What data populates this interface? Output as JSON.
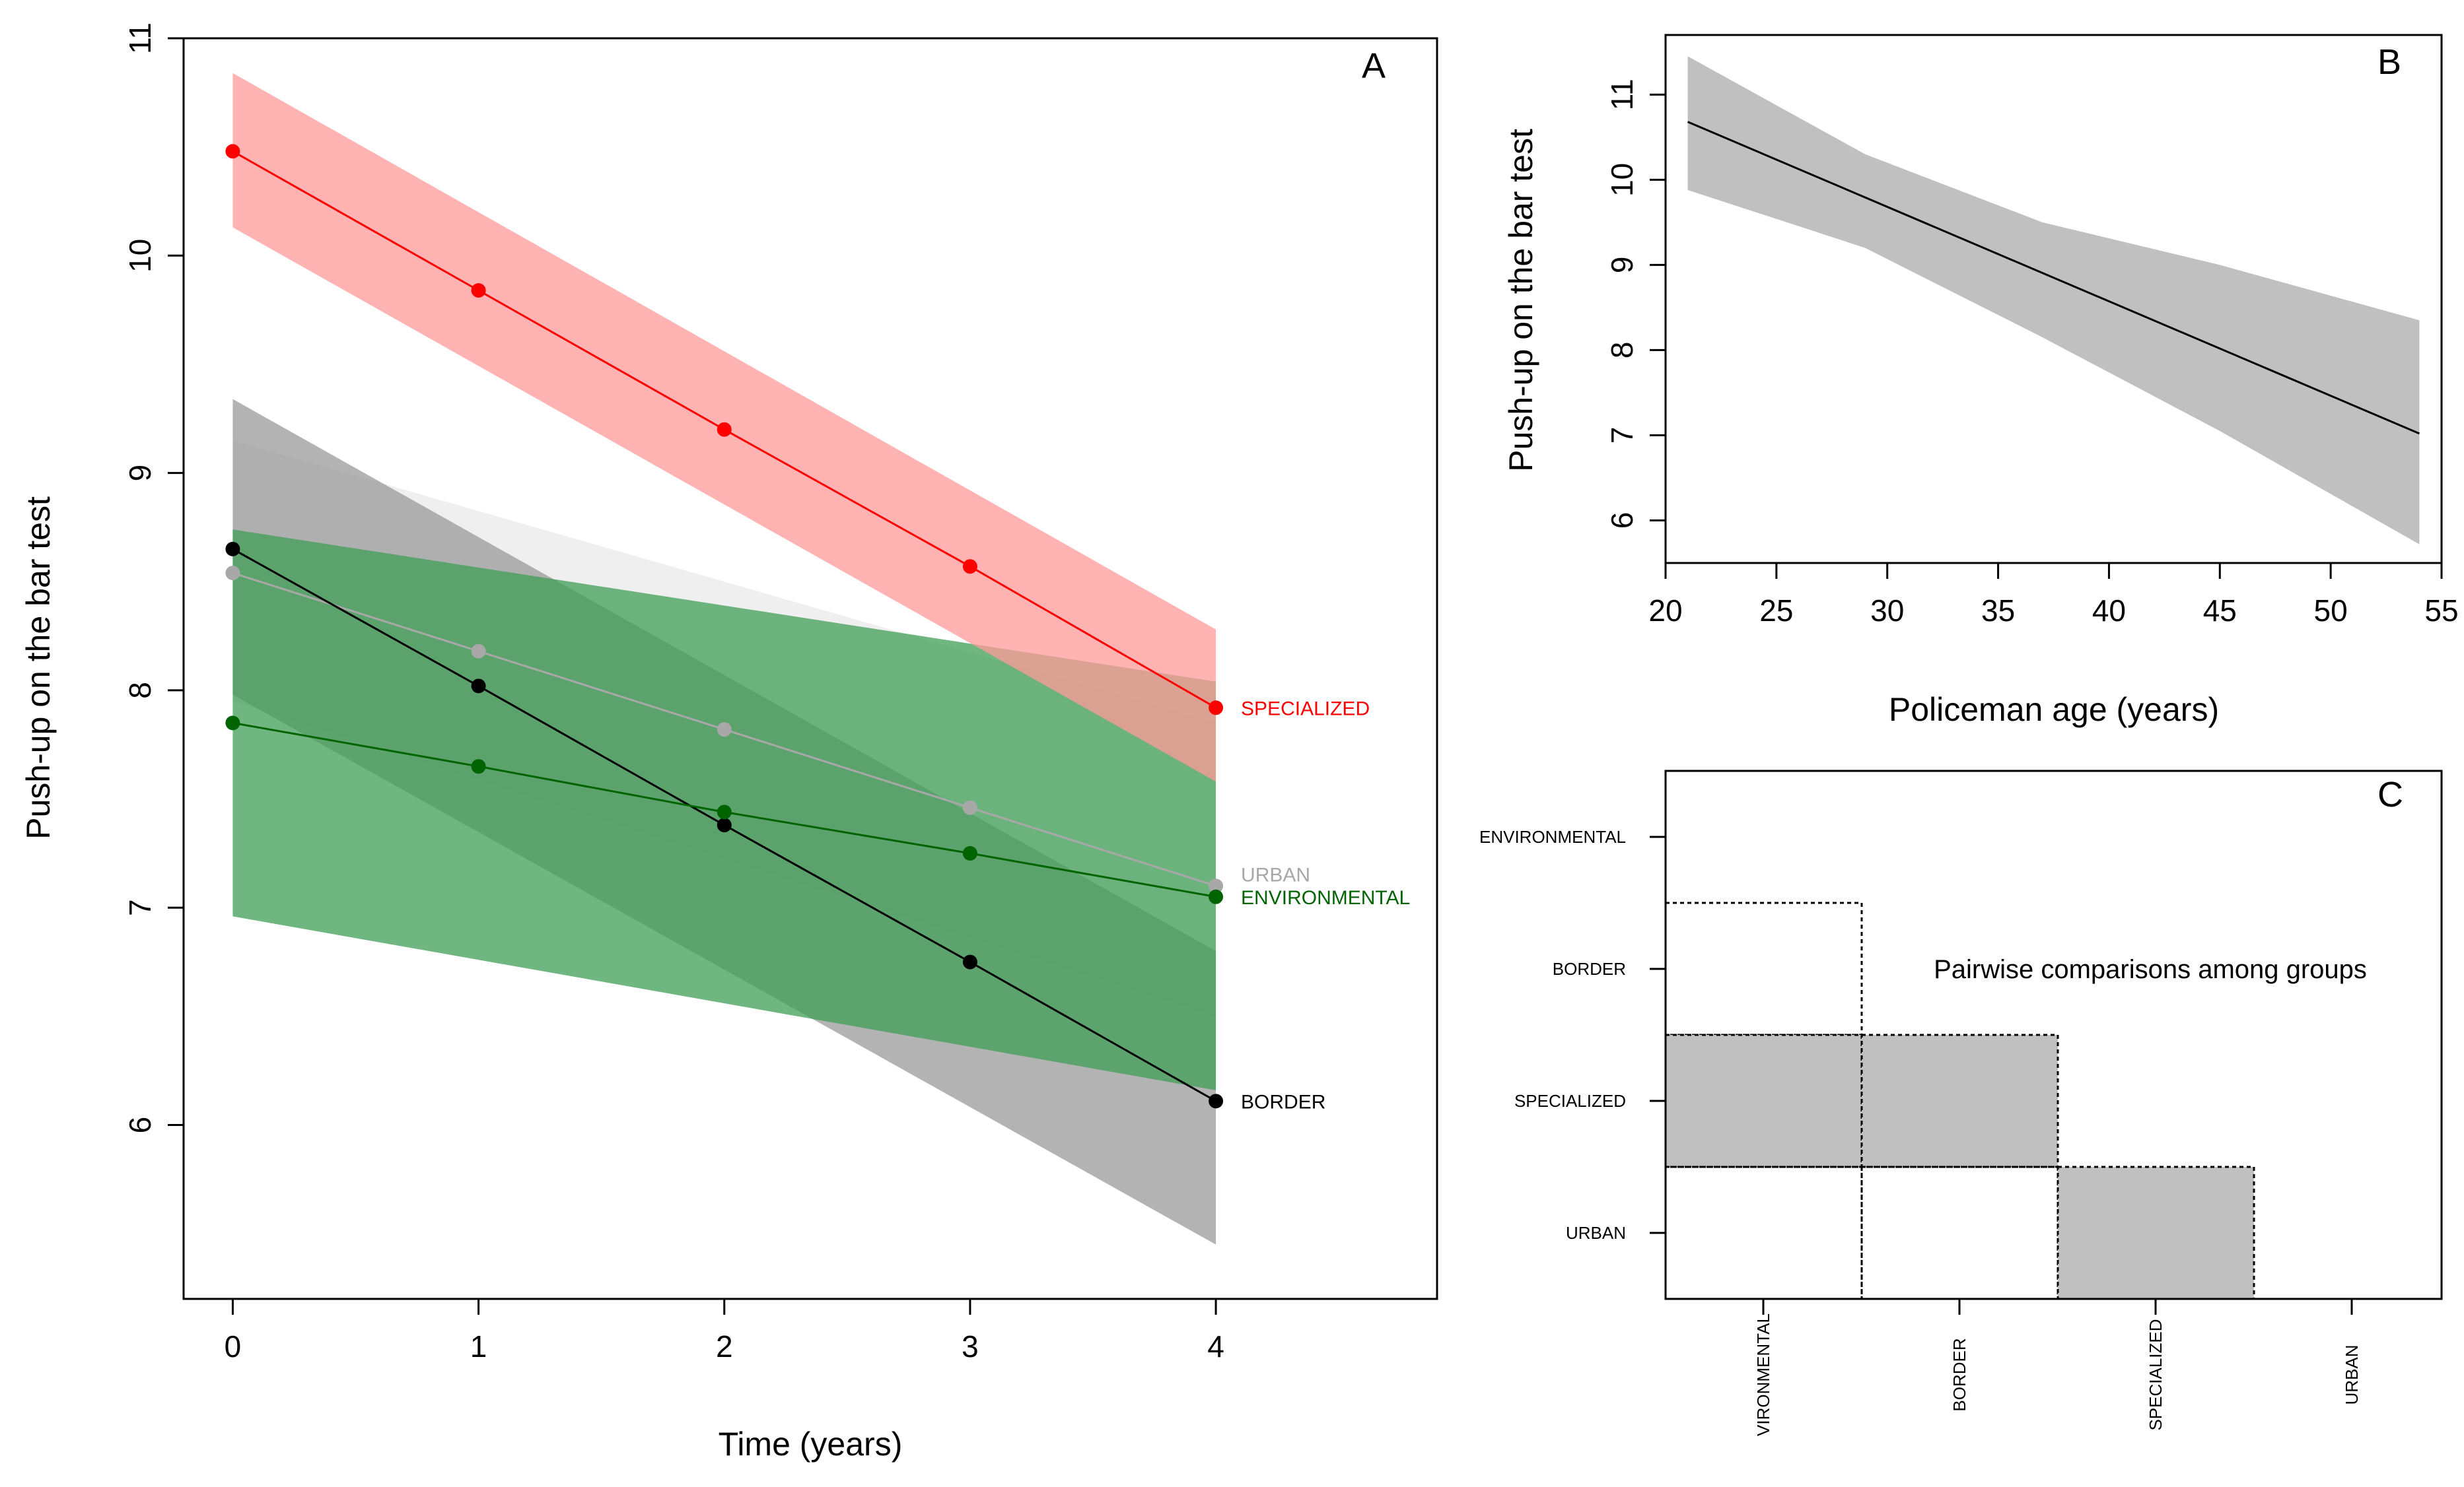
{
  "chart_data": [
    {
      "panel": "A",
      "type": "line",
      "panel_label": "A",
      "xlabel": "Time (years)",
      "ylabel": "Push-up on the bar test",
      "xlim": [
        -0.2,
        4.9
      ],
      "ylim": [
        5.2,
        11.0
      ],
      "x_ticks": [
        0,
        1,
        2,
        3,
        4
      ],
      "y_ticks": [
        6,
        7,
        8,
        9,
        10,
        11
      ],
      "x": [
        0,
        1,
        2,
        3,
        4
      ],
      "series": [
        {
          "name": "URBAN",
          "color": "#a8a8a8",
          "band_color": "#e9e9e9",
          "values": [
            8.54,
            8.18,
            7.82,
            7.46,
            7.1
          ],
          "ci_start": [
            7.95,
            9.15
          ],
          "ci_end": [
            6.5,
            7.85
          ]
        },
        {
          "name": "BORDER",
          "color": "#000000",
          "band_color": "#9a9a9a",
          "values": [
            8.65,
            8.02,
            7.38,
            6.75,
            6.11
          ],
          "ci_start": [
            7.98,
            9.34
          ],
          "ci_end": [
            5.45,
            6.8
          ]
        },
        {
          "name": "ENVIRONMENTAL",
          "color": "#006400",
          "band_color": "#3f9e56",
          "values": [
            7.85,
            7.65,
            7.44,
            7.25,
            7.05
          ],
          "ci_start": [
            6.96,
            8.74
          ],
          "ci_end": [
            6.16,
            8.04
          ]
        },
        {
          "name": "SPECIALIZED",
          "color": "#ff0000",
          "band_color": "#ff9999",
          "values": [
            10.48,
            9.84,
            9.2,
            8.57,
            7.92
          ],
          "ci_start": [
            10.13,
            10.84
          ],
          "ci_end": [
            7.58,
            8.28
          ]
        }
      ]
    },
    {
      "panel": "B",
      "type": "line",
      "panel_label": "B",
      "xlabel": "Policeman age (years)",
      "ylabel": "Push-up on the bar test",
      "xlim": [
        20,
        55
      ],
      "ylim": [
        5.5,
        11.7
      ],
      "x_ticks": [
        20,
        25,
        30,
        35,
        40,
        45,
        50,
        55
      ],
      "y_ticks": [
        6,
        7,
        8,
        9,
        10,
        11
      ],
      "line": {
        "x": [
          21,
          54
        ],
        "y": [
          10.68,
          7.02
        ],
        "color": "#000000"
      },
      "ci_band": {
        "color": "#c0c0c0",
        "x": [
          21,
          29,
          37,
          45,
          54
        ],
        "upper": [
          11.45,
          10.3,
          9.5,
          9.0,
          8.35
        ],
        "lower": [
          9.88,
          9.2,
          8.15,
          7.05,
          5.72
        ]
      }
    },
    {
      "panel": "C",
      "type": "heatmap",
      "panel_label": "C",
      "annotation": "Pairwise comparisons among groups",
      "x_categories": [
        "VIRONMENTAL",
        "BORDER",
        "SPECIALIZED",
        "URBAN"
      ],
      "y_categories": [
        "URBAN",
        "SPECIALIZED",
        "BORDER",
        "ENVIRONMENTAL"
      ],
      "cells": [
        {
          "x": "ENVIRONMENTAL",
          "y": "BORDER",
          "significant": false
        },
        {
          "x": "ENVIRONMENTAL",
          "y": "SPECIALIZED",
          "significant": true
        },
        {
          "x": "BORDER",
          "y": "SPECIALIZED",
          "significant": true
        },
        {
          "x": "ENVIRONMENTAL",
          "y": "URBAN",
          "significant": false
        },
        {
          "x": "BORDER",
          "y": "URBAN",
          "significant": false
        },
        {
          "x": "SPECIALIZED",
          "y": "URBAN",
          "significant": true
        }
      ],
      "significant_color": "#c0c0c0"
    }
  ]
}
